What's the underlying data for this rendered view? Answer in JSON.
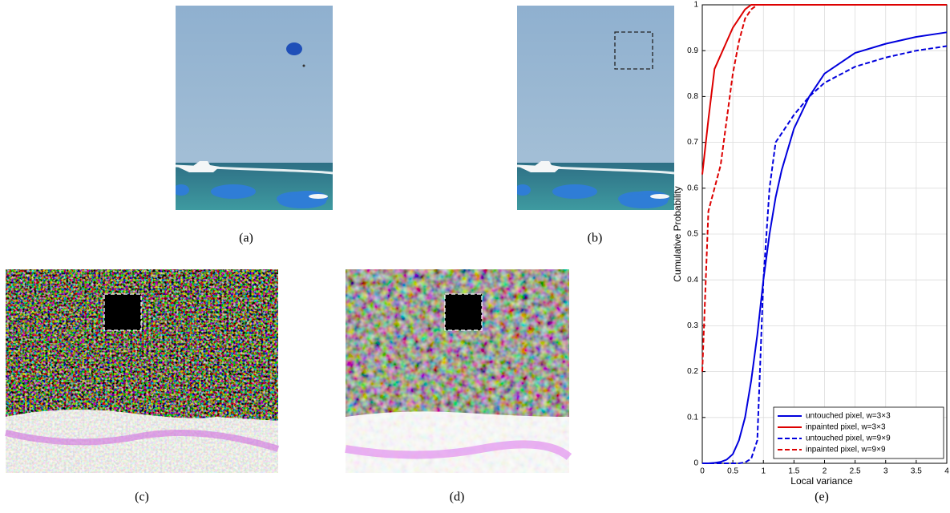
{
  "captions": [
    "(a)",
    "(b)",
    "(c)",
    "(d)",
    "(e)"
  ],
  "chart_data": {
    "type": "line",
    "xlabel": "Local variance",
    "ylabel": "Cumulative Probability",
    "xlim": [
      0,
      4
    ],
    "ylim": [
      0,
      1
    ],
    "xticks": [
      0,
      0.5,
      1,
      1.5,
      2,
      2.5,
      3,
      3.5,
      4
    ],
    "yticks": [
      0,
      0.1,
      0.2,
      0.3,
      0.4,
      0.5,
      0.6,
      0.7,
      0.8,
      0.9,
      1
    ],
    "grid": true,
    "legend": "lower right",
    "x": [
      0,
      0.1,
      0.2,
      0.3,
      0.4,
      0.5,
      0.6,
      0.7,
      0.8,
      0.9,
      1,
      1.1,
      1.2,
      1.3,
      1.5,
      1.75,
      2,
      2.5,
      3,
      3.5,
      4
    ],
    "series": [
      {
        "name": "untouched pixel, w=3×3",
        "color": "#0000dd",
        "line_style": "solid",
        "values": [
          0,
          0,
          0.001,
          0.003,
          0.008,
          0.02,
          0.05,
          0.1,
          0.18,
          0.28,
          0.4,
          0.5,
          0.58,
          0.64,
          0.73,
          0.8,
          0.85,
          0.895,
          0.915,
          0.93,
          0.94
        ]
      },
      {
        "name": "inpainted pixel, w=3×3",
        "color": "#dd0000",
        "line_style": "solid",
        "values": [
          0.63,
          0.75,
          0.86,
          0.89,
          0.92,
          0.95,
          0.97,
          0.99,
          1,
          1,
          1,
          1,
          1,
          1,
          1,
          1,
          1,
          1,
          1,
          1,
          1
        ]
      },
      {
        "name": "untouched pixel, w=9×9",
        "color": "#0000dd",
        "line_style": "dashed",
        "values": [
          0,
          0,
          0,
          0,
          0,
          0,
          0,
          0.002,
          0.01,
          0.05,
          0.4,
          0.6,
          0.7,
          0.72,
          0.76,
          0.8,
          0.83,
          0.865,
          0.885,
          0.9,
          0.91
        ]
      },
      {
        "name": "inpainted pixel, w=9×9",
        "color": "#dd0000",
        "line_style": "dashed",
        "values": [
          0.2,
          0.55,
          0.6,
          0.65,
          0.75,
          0.85,
          0.92,
          0.97,
          0.99,
          1,
          1,
          1,
          1,
          1,
          1,
          1,
          1,
          1,
          1,
          1,
          1
        ]
      }
    ]
  }
}
